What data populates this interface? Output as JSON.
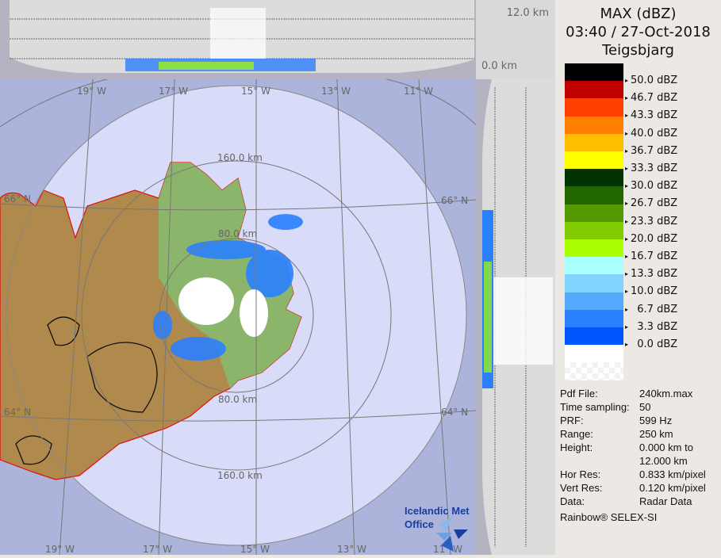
{
  "header": {
    "product": "MAX (dBZ)",
    "datetime": "03:40 / 27-Oct-2018",
    "station": "Teigsbjarg"
  },
  "height_axis": {
    "top": "12.0 km",
    "bottom": "0.0 km"
  },
  "legend": {
    "colors": [
      "#000000",
      "#c00000",
      "#ff4000",
      "#ff8000",
      "#ffbf00",
      "#ffff00",
      "#003300",
      "#226600",
      "#559900",
      "#80cc00",
      "#aaff00",
      "#aaffff",
      "#80d4ff",
      "#55aaff",
      "#2a80ff",
      "#0055ff",
      "#ffffff"
    ],
    "labels": [
      "50.0 dBZ",
      "46.7 dBZ",
      "43.3 dBZ",
      "40.0 dBZ",
      "36.7 dBZ",
      "33.3 dBZ",
      "30.0 dBZ",
      "26.7 dBZ",
      "23.3 dBZ",
      "20.0 dBZ",
      "16.7 dBZ",
      "13.3 dBZ",
      "10.0 dBZ",
      "  6.7 dBZ",
      "  3.3 dBZ",
      "  0.0 dBZ"
    ]
  },
  "info": [
    {
      "key": "Pdf File:",
      "value": "240km.max"
    },
    {
      "key": "Time sampling:",
      "value": "50"
    },
    {
      "key": "PRF:",
      "value": "599 Hz"
    },
    {
      "key": "Range:",
      "value": "250 km"
    },
    {
      "key": "Height:",
      "value": "0.000 km to"
    },
    {
      "key": "",
      "value": "12.000 km"
    },
    {
      "key": "Hor Res:",
      "value": "0.833 km/pixel"
    },
    {
      "key": "Vert Res:",
      "value": "0.120 km/pixel"
    },
    {
      "key": "Data:",
      "value": "Radar Data"
    }
  ],
  "footer": "Rainbow® SELEX-SI",
  "map": {
    "longitudes_top": [
      "19° W",
      "17° W",
      "15° W",
      "13° W",
      "11° W"
    ],
    "longitudes_bottom": [
      "19° W",
      "17° W",
      "15° W",
      "13° W",
      "11° W"
    ],
    "lat_north": "66° N",
    "lat_south": "64° N",
    "range_rings": [
      "80.0 km",
      "160.0 km"
    ],
    "logo": {
      "line1": "Icelandic Met",
      "line2": "Office"
    }
  }
}
